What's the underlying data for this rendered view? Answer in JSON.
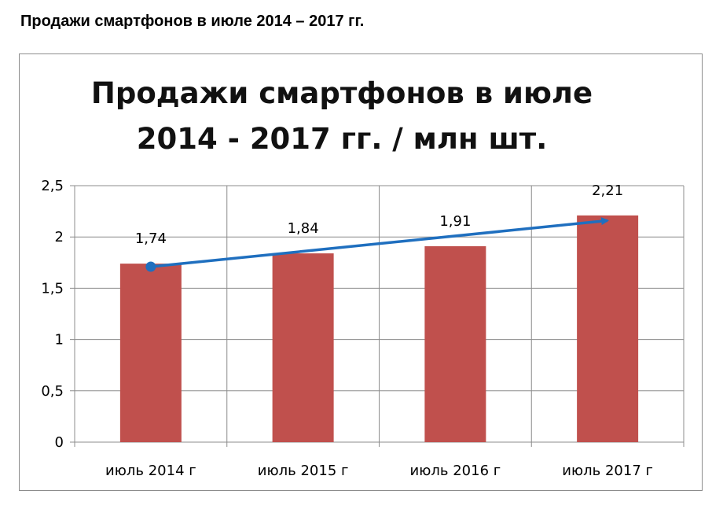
{
  "page": {
    "heading": "Продажи смартфонов в июле 2014 – 2017 гг."
  },
  "chart_data": {
    "type": "bar",
    "title": "Продажи смартфонов в июле 2014 - 2017 гг. / млн шт.",
    "title_lines": [
      "Продажи смартфонов в июле",
      "2014 - 2017 гг. / млн шт."
    ],
    "categories": [
      "июль 2014 г",
      "июль 2015 г",
      "июль 2016 г",
      "июль 2017 г"
    ],
    "values": [
      1.74,
      1.84,
      1.91,
      2.21
    ],
    "data_labels": [
      "1,74",
      "1,84",
      "1,91",
      "2,21"
    ],
    "y_ticks": [
      0,
      0.5,
      1,
      1.5,
      2,
      2.5
    ],
    "y_tick_labels": [
      "0",
      "0,5",
      "1",
      "1,5",
      "2",
      "2,5"
    ],
    "ylim": [
      0,
      2.5
    ],
    "grid": true,
    "bar_color": "#c0504d",
    "trend_arrow": {
      "from": 1.71,
      "to": 2.16,
      "color": "#1f6fbf"
    },
    "xlabel": "",
    "ylabel": ""
  }
}
